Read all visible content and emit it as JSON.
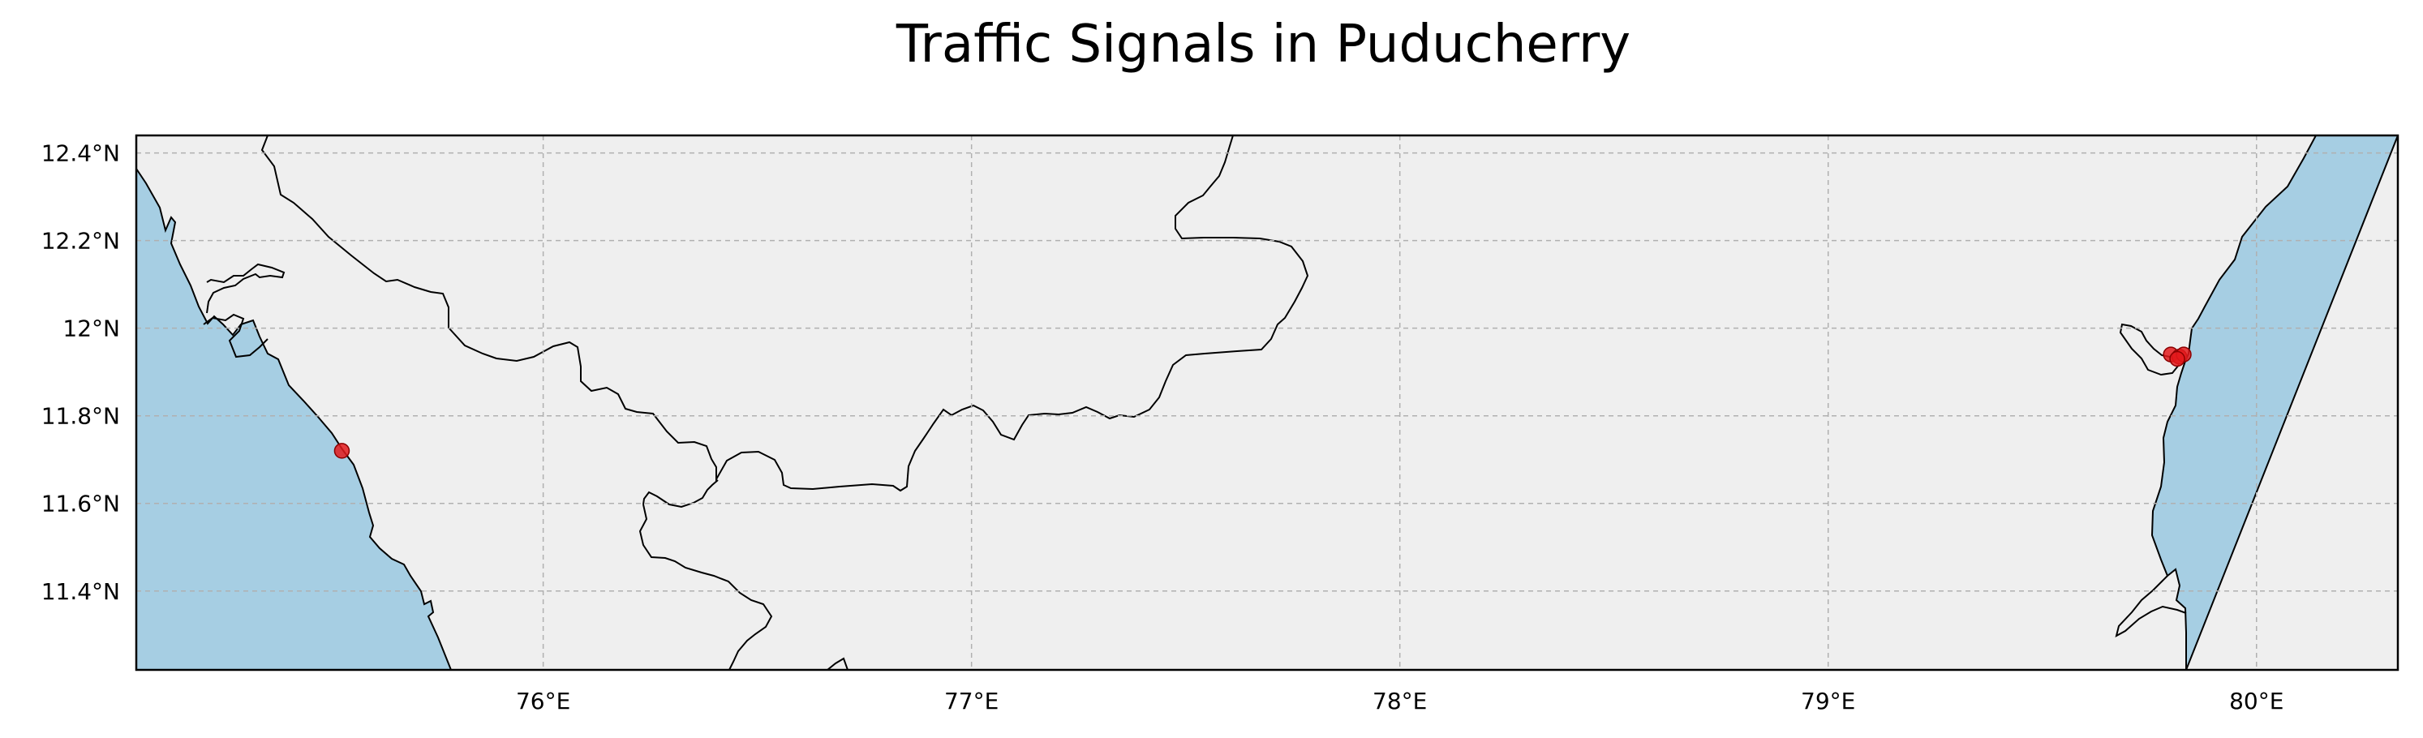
{
  "title": "Traffic Signals in Puducherry",
  "map": {
    "extent": {
      "lon_min": 75.05,
      "lon_max": 80.33,
      "lat_min": 11.22,
      "lat_max": 12.44
    },
    "lon_ticks": [
      {
        "value": 76,
        "label": "76°E"
      },
      {
        "value": 77,
        "label": "77°E"
      },
      {
        "value": 78,
        "label": "78°E"
      },
      {
        "value": 79,
        "label": "79°E"
      },
      {
        "value": 80,
        "label": "80°E"
      }
    ],
    "lat_ticks": [
      {
        "value": 12.4,
        "label": "12.4°N"
      },
      {
        "value": 12.2,
        "label": "12.2°N"
      },
      {
        "value": 12.0,
        "label": "12°N"
      },
      {
        "value": 11.8,
        "label": "11.8°N"
      },
      {
        "value": 11.6,
        "label": "11.6°N"
      },
      {
        "value": 11.4,
        "label": "11.4°N"
      }
    ],
    "gridlines": true,
    "colors": {
      "land": "#efefef",
      "ocean": "#a6cee3",
      "marker": "#e31a1c",
      "marker_edge": "#8b0000",
      "border": "#000000",
      "grid": "#b0b0b0"
    },
    "signals": [
      {
        "lon": 75.53,
        "lat": 11.72
      },
      {
        "lon": 79.8,
        "lat": 11.94
      },
      {
        "lon": 79.82,
        "lat": 11.935
      },
      {
        "lon": 79.83,
        "lat": 11.94
      },
      {
        "lon": 79.815,
        "lat": 11.93
      }
    ]
  }
}
